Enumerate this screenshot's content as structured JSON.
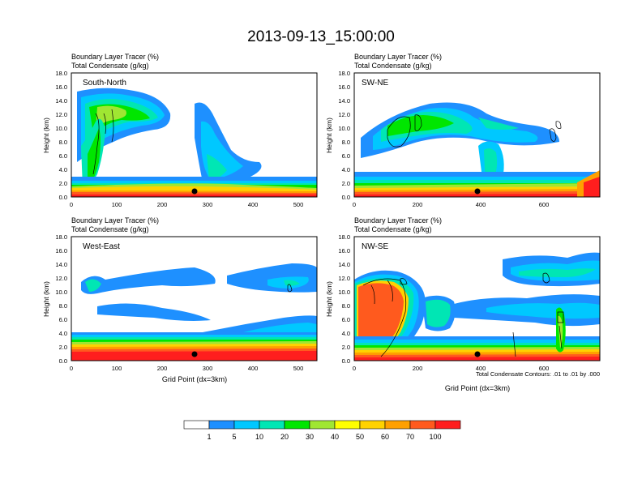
{
  "figure": {
    "title": "2013-09-13_15:00:00",
    "contour_note": "Total Condensate Contours: .01 to .01 by .000"
  },
  "chart_data": [
    {
      "type": "heatmap",
      "panel_label": "South-North",
      "title_line1": "Boundary Layer Tracer   (%)",
      "title_line2": "Total Condensate   (g/kg)",
      "ylabel": "Height (km)",
      "xlabel": "",
      "xlim": [
        0,
        540
      ],
      "ylim": [
        0,
        18
      ],
      "xticks": [
        0,
        100,
        200,
        300,
        400,
        500
      ],
      "yticks": [
        "0.0",
        "2.0",
        "4.0",
        "6.0",
        "8.0",
        "10.0",
        "12.0",
        "14.0",
        "16.0",
        "18.0"
      ],
      "marker": {
        "x": 275,
        "y": 1.0
      }
    },
    {
      "type": "heatmap",
      "panel_label": "SW-NE",
      "title_line1": "Boundary Layer Tracer   (%)",
      "title_line2": "Total Condensate   (g/kg)",
      "ylabel": "Height (km)",
      "xlabel": "",
      "xlim": [
        0,
        780
      ],
      "ylim": [
        0,
        18
      ],
      "xticks": [
        0,
        200,
        400,
        600
      ],
      "yticks": [
        "0.0",
        "2.0",
        "4.0",
        "6.0",
        "8.0",
        "10.0",
        "12.0",
        "14.0",
        "16.0",
        "18.0"
      ],
      "marker": {
        "x": 390,
        "y": 1.0
      }
    },
    {
      "type": "heatmap",
      "panel_label": "West-East",
      "title_line1": "Boundary Layer Tracer   (%)",
      "title_line2": "Total Condensate   (g/kg)",
      "ylabel": "Height (km)",
      "xlabel": "Grid Point (dx=3km)",
      "xlim": [
        0,
        540
      ],
      "ylim": [
        0,
        18
      ],
      "xticks": [
        0,
        100,
        200,
        300,
        400,
        500
      ],
      "yticks": [
        "0.0",
        "2.0",
        "4.0",
        "6.0",
        "8.0",
        "10.0",
        "12.0",
        "14.0",
        "16.0",
        "18.0"
      ],
      "marker": {
        "x": 275,
        "y": 1.0
      }
    },
    {
      "type": "heatmap",
      "panel_label": "NW-SE",
      "title_line1": "Boundary Layer Tracer   (%)",
      "title_line2": "Total Condensate   (g/kg)",
      "ylabel": "Height (km)",
      "xlabel": "Grid Point (dx=3km)",
      "xlim": [
        0,
        780
      ],
      "ylim": [
        0,
        18
      ],
      "xticks": [
        0,
        200,
        400,
        600
      ],
      "yticks": [
        "0.0",
        "2.0",
        "4.0",
        "6.0",
        "8.0",
        "10.0",
        "12.0",
        "14.0",
        "16.0",
        "18.0"
      ],
      "marker": {
        "x": 390,
        "y": 1.0
      }
    }
  ],
  "colorbar": {
    "labels": [
      "1",
      "5",
      "10",
      "20",
      "30",
      "40",
      "50",
      "60",
      "70",
      "100"
    ],
    "colors": [
      "#ffffff",
      "#1e90ff",
      "#00c8ff",
      "#00e6b4",
      "#00e600",
      "#a0e632",
      "#ffff00",
      "#ffd200",
      "#ffa000",
      "#ff5a1e",
      "#ff1e1e"
    ]
  }
}
